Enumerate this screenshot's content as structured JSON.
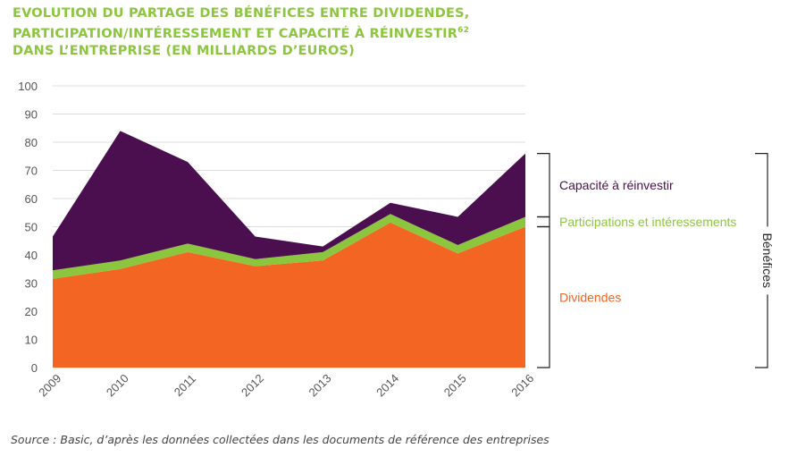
{
  "title_lines": [
    "EVOLUTION DU PARTAGE DES BÉNÉFICES ENTRE DIVIDENDES,",
    "PARTICIPATION/INTÉRESSEMENT ET CAPACITÉ À RÉINVESTIR",
    "DANS L’ENTREPRISE (EN MILLIARDS D’EUROS)"
  ],
  "title_footnote": "62",
  "source": "Source : Basic, d’après les données collectées dans les documents de référence des entreprises",
  "colors": {
    "dividendes": "#f26522",
    "participations": "#8cc63f",
    "capacite": "#4b0f4f",
    "title": "#8cc63f",
    "grid": "#dcdcdc",
    "axis_text": "#555555",
    "bracket": "#222222"
  },
  "chart_data": {
    "type": "area",
    "stacked": true,
    "x": [
      "2009",
      "2010",
      "2011",
      "2012",
      "2013",
      "2014",
      "2015",
      "2016"
    ],
    "ylim": [
      0,
      100
    ],
    "yticks": [
      0,
      10,
      20,
      30,
      40,
      50,
      60,
      70,
      80,
      90,
      100
    ],
    "grid": true,
    "series": [
      {
        "name": "Dividendes",
        "values": [
          31.5,
          35,
          41,
          36,
          38,
          51.5,
          40.5,
          50
        ],
        "color_key": "dividendes"
      },
      {
        "name": "Participations et intéressements",
        "values": [
          3,
          3,
          3,
          2.5,
          3,
          3,
          3,
          3.5
        ],
        "color_key": "participations"
      },
      {
        "name": "Capacité à réinvestir",
        "values": [
          12,
          46,
          29,
          8,
          2,
          4,
          10,
          22.5
        ],
        "color_key": "capacite"
      }
    ],
    "group_label": "Bénéfices",
    "legend_placement": "right"
  }
}
